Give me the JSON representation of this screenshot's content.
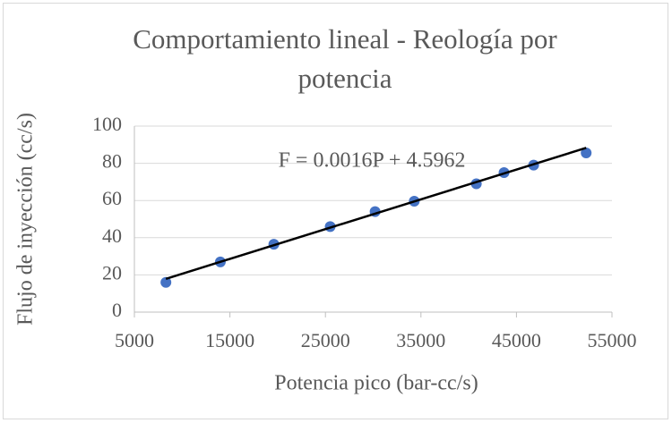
{
  "chart_data": {
    "type": "scatter",
    "title": "Comportamiento lineal - Reología por potencia",
    "xlabel": "Potencia pico (bar-cc/s)",
    "ylabel": "Flujo de inyección (cc/s)",
    "annotation": "F = 0.0016P + 4.5962",
    "xlim": [
      5000,
      55000
    ],
    "xticks": [
      5000,
      15000,
      25000,
      35000,
      45000,
      55000
    ],
    "ylim": [
      0,
      100
    ],
    "yticks": [
      0,
      20,
      40,
      60,
      80,
      100
    ],
    "grid": true,
    "series": [
      {
        "color": "#4472c4",
        "x": [
          8300,
          14000,
          19600,
          25500,
          30200,
          34300,
          40800,
          43700,
          46800,
          52300
        ],
        "values": [
          16,
          27,
          36.5,
          46,
          54,
          59.6,
          69,
          75,
          79,
          85.6
        ]
      }
    ],
    "trendline": {
      "color": "#000000",
      "x": [
        8300,
        52300
      ],
      "values": [
        17.9,
        88.3
      ]
    }
  }
}
